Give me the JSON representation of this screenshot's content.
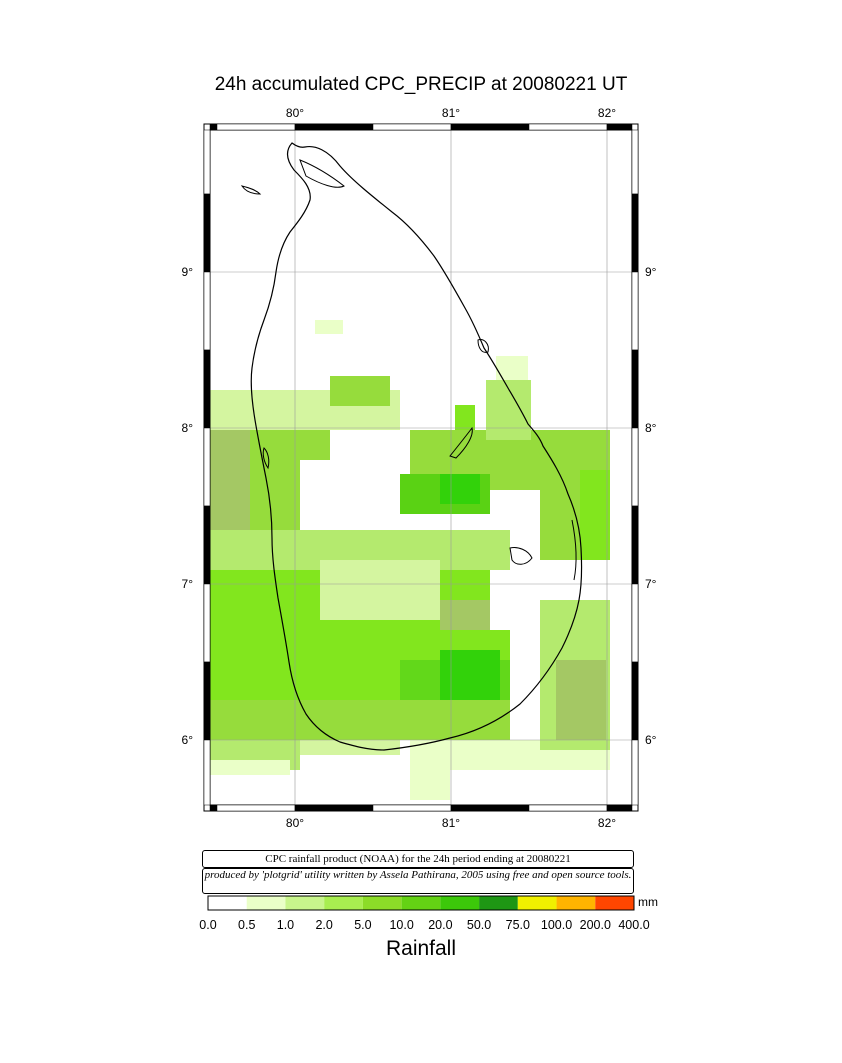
{
  "title": "24h accumulated CPC_PRECIP  at 20080221 UT",
  "axes": {
    "lon_ticks": [
      "80°",
      "81°",
      "82°"
    ],
    "lat_ticks": [
      "9°",
      "8°",
      "7°",
      "6°"
    ],
    "lon_range": [
      79.43,
      82.18
    ],
    "lat_range": [
      5.55,
      9.9
    ]
  },
  "credit": {
    "line1": "CPC rainfall product (NOAA) for the 24h period ending at 20080221",
    "line2": "produced by 'plotgrid' utility written by Assela Pathirana, 2005 using free and open source tools."
  },
  "legend": {
    "title": "Rainfall",
    "unit": "mm",
    "labels": [
      "0.0",
      "0.5",
      "1.0",
      "2.0",
      "5.0",
      "10.0",
      "20.0",
      "50.0",
      "75.0",
      "100.0",
      "200.0",
      "400.0"
    ],
    "colors": [
      "#ffffff",
      "#eaffc8",
      "#c8f58c",
      "#a8ee50",
      "#8cdc28",
      "#64d214",
      "#3cc80a",
      "#1e9614",
      "#f0f000",
      "#ffb400",
      "#ff4600",
      "#ff7fe0"
    ]
  },
  "colors": {
    "light": "#eaffc8",
    "pale": "#d4f5a0",
    "mid": "#b4ea6e",
    "green": "#96dc3c",
    "bright": "#82e61e",
    "olive": "#a4c864",
    "dark": "#5ad214",
    "darkest": "#32d20a"
  }
}
